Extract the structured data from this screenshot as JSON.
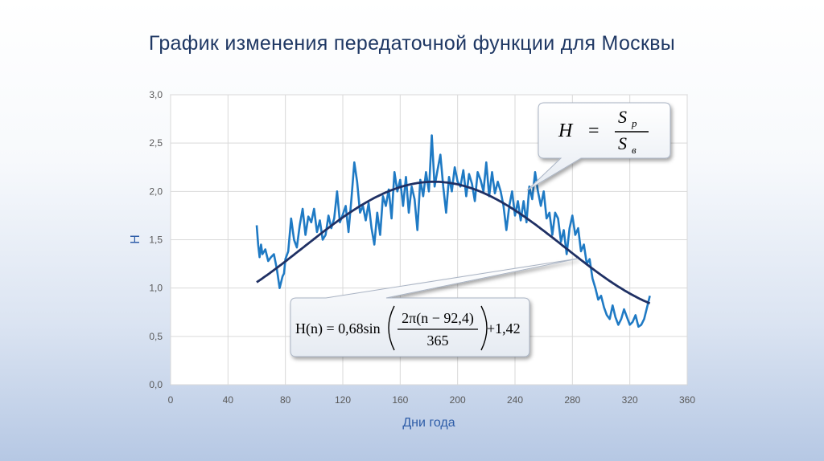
{
  "slide": {
    "title": "График изменения передаточной функции для Москвы"
  },
  "colors": {
    "title": "#1f3864",
    "noisy_line": "#1f7ac4",
    "fit_line": "#1f3064",
    "axis_title": "#2e5da8"
  },
  "formula_ratio": {
    "lhs": "H",
    "eq": "=",
    "numerator": "S",
    "numerator_sub": "р",
    "denominator": "S",
    "denominator_sub": "в"
  },
  "formula_fit": {
    "lhs": "H(n) = 0,68sin",
    "numerator": "2π(n − 92,4)",
    "denominator": "365",
    "rhs": "+1,42"
  },
  "chart_data": {
    "type": "line",
    "title": "",
    "xlabel": "Дни года",
    "ylabel": "H",
    "xlim": [
      0,
      360
    ],
    "ylim": [
      0,
      3.0
    ],
    "x_ticks": [
      0,
      40,
      80,
      120,
      160,
      200,
      240,
      280,
      320,
      360
    ],
    "x_tick_labels": [
      "0",
      "40",
      "80",
      "120",
      "160",
      "200",
      "240",
      "280",
      "320",
      "360"
    ],
    "y_ticks": [
      0,
      0.5,
      1.0,
      1.5,
      2.0,
      2.5,
      3.0
    ],
    "y_tick_labels": [
      "0,0",
      "0,5",
      "1,0",
      "1,5",
      "2,0",
      "2,5",
      "3,0"
    ],
    "grid": true,
    "legend": "none",
    "series": [
      {
        "style": "noisy-measured",
        "x": [
          60,
          61,
          62,
          63,
          64,
          66,
          68,
          70,
          72,
          74,
          76,
          78,
          79,
          80,
          82,
          84,
          86,
          88,
          90,
          92,
          94,
          96,
          98,
          100,
          102,
          104,
          106,
          108,
          110,
          112,
          114,
          116,
          118,
          120,
          122,
          124,
          126,
          128,
          130,
          132,
          134,
          136,
          138,
          140,
          142,
          144,
          146,
          148,
          150,
          152,
          154,
          156,
          158,
          160,
          162,
          164,
          166,
          168,
          170,
          172,
          174,
          176,
          178,
          180,
          182,
          184,
          186,
          188,
          190,
          192,
          194,
          196,
          198,
          200,
          202,
          204,
          206,
          208,
          210,
          212,
          214,
          216,
          218,
          220,
          222,
          224,
          226,
          228,
          230,
          232,
          234,
          236,
          238,
          240,
          242,
          244,
          246,
          248,
          250,
          252,
          254,
          256,
          258,
          260,
          262,
          264,
          266,
          268,
          270,
          272,
          274,
          276,
          278,
          280,
          282,
          284,
          286,
          288,
          290,
          292,
          294,
          296,
          298,
          300,
          302,
          304,
          306,
          308,
          310,
          312,
          314,
          316,
          318,
          320,
          322,
          324,
          326,
          328,
          330,
          332,
          334
        ],
        "y": [
          1.65,
          1.45,
          1.32,
          1.45,
          1.35,
          1.4,
          1.28,
          1.32,
          1.35,
          1.2,
          1.0,
          1.12,
          1.15,
          1.3,
          1.38,
          1.72,
          1.5,
          1.42,
          1.65,
          1.82,
          1.55,
          1.74,
          1.68,
          1.82,
          1.58,
          1.7,
          1.5,
          1.55,
          1.75,
          1.62,
          1.72,
          2.0,
          1.68,
          1.76,
          1.85,
          1.58,
          1.92,
          2.3,
          2.1,
          1.78,
          1.85,
          1.7,
          1.88,
          1.62,
          1.45,
          1.78,
          1.55,
          1.95,
          1.85,
          2.02,
          1.72,
          2.2,
          2.0,
          2.12,
          1.85,
          2.15,
          1.78,
          2.05,
          1.92,
          1.6,
          2.12,
          1.95,
          2.2,
          2.0,
          2.58,
          2.05,
          2.22,
          2.38,
          2.05,
          1.78,
          2.15,
          2.0,
          2.25,
          2.1,
          2.05,
          2.22,
          1.95,
          2.18,
          2.08,
          1.9,
          2.2,
          2.12,
          2.0,
          2.3,
          1.95,
          2.2,
          1.98,
          2.1,
          2.0,
          1.85,
          1.6,
          1.85,
          2.0,
          1.75,
          1.9,
          1.7,
          1.9,
          1.68,
          2.05,
          1.92,
          2.2,
          2.0,
          1.85,
          2.0,
          1.72,
          1.78,
          1.55,
          1.78,
          1.72,
          1.48,
          1.6,
          1.35,
          1.62,
          1.75,
          1.55,
          1.62,
          1.38,
          1.45,
          1.25,
          1.3,
          1.1,
          1.0,
          0.88,
          0.92,
          0.8,
          0.72,
          0.68,
          0.82,
          0.7,
          0.62,
          0.68,
          0.78,
          0.7,
          0.62,
          0.65,
          0.72,
          0.6,
          0.62,
          0.68,
          0.8,
          0.92
        ]
      },
      {
        "style": "fitted",
        "formula": "H(n) = 0,68sin(2π(n − 92,4)/365) + 1,42",
        "x_range": [
          60,
          334
        ]
      }
    ]
  }
}
